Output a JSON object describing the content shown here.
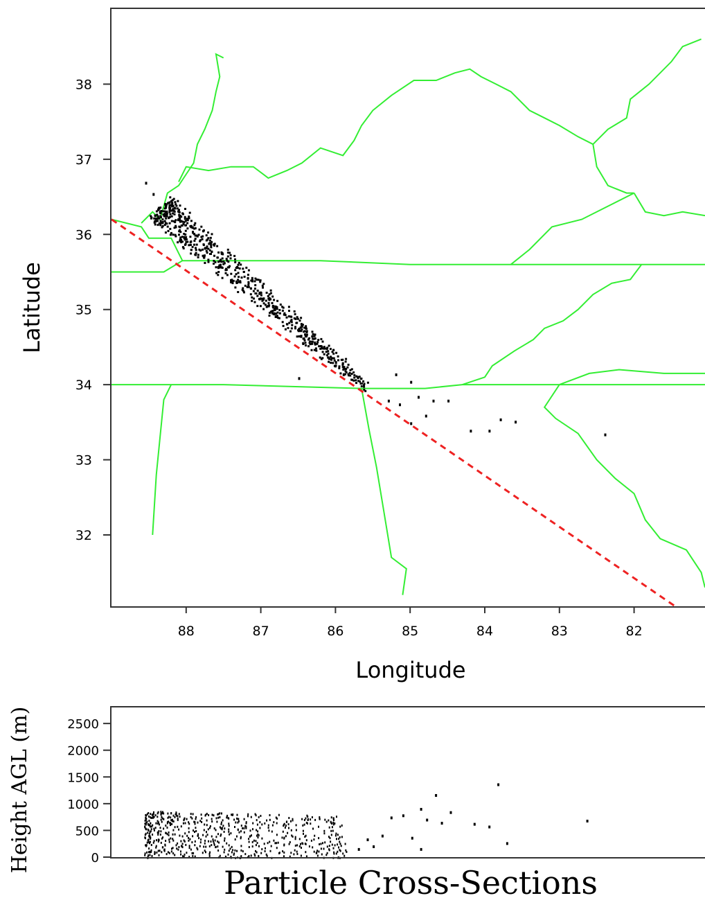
{
  "chart_data": [
    {
      "type": "scatter",
      "panel": "map",
      "title": "",
      "xlabel": "Longitude",
      "ylabel": "Latitude",
      "xlim": [
        89.0,
        81.05
      ],
      "ylim": [
        31.05,
        39.0
      ],
      "x_ticks": [
        "88",
        "87",
        "86",
        "85",
        "84",
        "83",
        "82"
      ],
      "y_ticks": [
        "38",
        "37",
        "36",
        "35",
        "34",
        "33",
        "32"
      ],
      "colors": {
        "boundaries": "#33ee33",
        "cross_section_line": "#ee2222",
        "particles": "#000000"
      },
      "cross_section_line": {
        "from": [
          89.0,
          36.2
        ],
        "to": [
          81.45,
          31.05
        ]
      },
      "boundaries": [
        [
          [
            88.6,
            36.15
          ],
          [
            88.45,
            36.3
          ],
          [
            88.35,
            36.2
          ],
          [
            88.25,
            36.55
          ],
          [
            88.1,
            36.65
          ],
          [
            88.0,
            36.8
          ],
          [
            87.9,
            36.95
          ],
          [
            87.85,
            37.2
          ],
          [
            87.75,
            37.4
          ],
          [
            87.65,
            37.65
          ],
          [
            87.6,
            37.9
          ],
          [
            87.55,
            38.1
          ],
          [
            87.6,
            38.4
          ],
          [
            87.5,
            38.35
          ]
        ],
        [
          [
            88.1,
            36.7
          ],
          [
            88.0,
            36.9
          ],
          [
            87.7,
            36.85
          ],
          [
            87.4,
            36.9
          ],
          [
            87.1,
            36.9
          ],
          [
            86.9,
            36.75
          ],
          [
            86.65,
            36.85
          ],
          [
            86.45,
            36.95
          ],
          [
            86.2,
            37.15
          ],
          [
            85.9,
            37.05
          ],
          [
            85.75,
            37.25
          ],
          [
            85.65,
            37.45
          ],
          [
            85.5,
            37.65
          ],
          [
            85.25,
            37.85
          ],
          [
            84.95,
            38.05
          ],
          [
            84.65,
            38.05
          ],
          [
            84.4,
            38.15
          ],
          [
            84.2,
            38.2
          ],
          [
            84.05,
            38.1
          ],
          [
            83.85,
            38.0
          ],
          [
            83.65,
            37.9
          ],
          [
            83.4,
            37.65
          ],
          [
            83.2,
            37.55
          ],
          [
            83.0,
            37.45
          ],
          [
            82.75,
            37.3
          ],
          [
            82.55,
            37.2
          ],
          [
            82.5,
            36.9
          ],
          [
            82.35,
            36.65
          ],
          [
            82.1,
            36.55
          ],
          [
            82.0,
            36.55
          ]
        ],
        [
          [
            82.55,
            37.2
          ],
          [
            82.35,
            37.4
          ],
          [
            82.1,
            37.55
          ],
          [
            82.05,
            37.8
          ],
          [
            81.8,
            38.0
          ],
          [
            81.5,
            38.3
          ],
          [
            81.35,
            38.5
          ],
          [
            81.1,
            38.6
          ]
        ],
        [
          [
            82.0,
            36.55
          ],
          [
            81.85,
            36.3
          ],
          [
            81.6,
            36.25
          ],
          [
            81.35,
            36.3
          ],
          [
            81.05,
            36.25
          ]
        ],
        [
          [
            82.0,
            36.55
          ],
          [
            82.3,
            36.4
          ],
          [
            82.7,
            36.2
          ],
          [
            83.1,
            36.1
          ],
          [
            83.4,
            35.8
          ],
          [
            83.65,
            35.6
          ]
        ],
        [
          [
            89.0,
            36.2
          ],
          [
            88.6,
            36.1
          ],
          [
            88.5,
            35.95
          ],
          [
            88.2,
            35.95
          ],
          [
            88.1,
            35.75
          ],
          [
            88.05,
            35.65
          ]
        ],
        [
          [
            89.0,
            35.5
          ],
          [
            88.3,
            35.5
          ],
          [
            88.05,
            35.65
          ],
          [
            87.1,
            35.65
          ],
          [
            86.2,
            35.65
          ],
          [
            85.0,
            35.6
          ],
          [
            84.0,
            35.6
          ],
          [
            83.65,
            35.6
          ],
          [
            82.6,
            35.6
          ],
          [
            81.05,
            35.6
          ]
        ],
        [
          [
            81.9,
            35.6
          ],
          [
            82.05,
            35.4
          ],
          [
            82.3,
            35.35
          ],
          [
            82.55,
            35.2
          ],
          [
            82.75,
            35.0
          ],
          [
            82.95,
            34.85
          ],
          [
            83.2,
            34.75
          ],
          [
            83.35,
            34.6
          ],
          [
            83.6,
            34.45
          ],
          [
            83.9,
            34.25
          ],
          [
            84.0,
            34.1
          ],
          [
            84.3,
            34.0
          ]
        ],
        [
          [
            89.0,
            34.0
          ],
          [
            88.2,
            34.0
          ],
          [
            87.5,
            34.0
          ],
          [
            85.65,
            33.95
          ],
          [
            84.8,
            33.95
          ],
          [
            84.3,
            34.0
          ],
          [
            83.0,
            34.0
          ],
          [
            82.1,
            34.0
          ],
          [
            81.05,
            34.0
          ]
        ],
        [
          [
            83.0,
            34.0
          ],
          [
            82.6,
            34.15
          ],
          [
            82.2,
            34.2
          ],
          [
            81.6,
            34.15
          ],
          [
            81.05,
            34.15
          ]
        ],
        [
          [
            88.2,
            34.0
          ],
          [
            88.3,
            33.8
          ],
          [
            88.35,
            33.3
          ],
          [
            88.4,
            32.8
          ],
          [
            88.45,
            32.0
          ]
        ],
        [
          [
            85.65,
            33.95
          ],
          [
            85.55,
            33.4
          ],
          [
            85.45,
            32.9
          ],
          [
            85.35,
            32.3
          ],
          [
            85.25,
            31.7
          ],
          [
            85.05,
            31.55
          ],
          [
            85.1,
            31.2
          ]
        ],
        [
          [
            83.0,
            34.0
          ],
          [
            83.2,
            33.7
          ],
          [
            83.05,
            33.55
          ],
          [
            82.75,
            33.35
          ],
          [
            82.5,
            33.0
          ],
          [
            82.25,
            32.75
          ],
          [
            82.0,
            32.55
          ],
          [
            81.85,
            32.2
          ],
          [
            81.65,
            31.95
          ],
          [
            81.3,
            31.8
          ],
          [
            81.1,
            31.5
          ],
          [
            81.05,
            31.3
          ]
        ]
      ]
    },
    {
      "type": "scatter",
      "panel": "cross-section",
      "title": "Particle Cross-Sections",
      "xlabel": "",
      "ylabel": "Height AGL (m)",
      "ylim": [
        0,
        2800
      ],
      "y_ticks": [
        "2500",
        "2000",
        "1500",
        "1000",
        "500",
        "0"
      ],
      "xlim": [
        0,
        1
      ],
      "outliers": [
        [
          0.415,
          170
        ],
        [
          0.43,
          350
        ],
        [
          0.44,
          220
        ],
        [
          0.455,
          420
        ],
        [
          0.47,
          760
        ],
        [
          0.505,
          380
        ],
        [
          0.52,
          920
        ],
        [
          0.53,
          720
        ],
        [
          0.545,
          1180
        ],
        [
          0.555,
          660
        ],
        [
          0.57,
          860
        ],
        [
          0.61,
          640
        ],
        [
          0.635,
          590
        ],
        [
          0.65,
          1380
        ],
        [
          0.665,
          280
        ],
        [
          0.8,
          700
        ],
        [
          0.52,
          170
        ],
        [
          0.49,
          800
        ]
      ]
    }
  ]
}
